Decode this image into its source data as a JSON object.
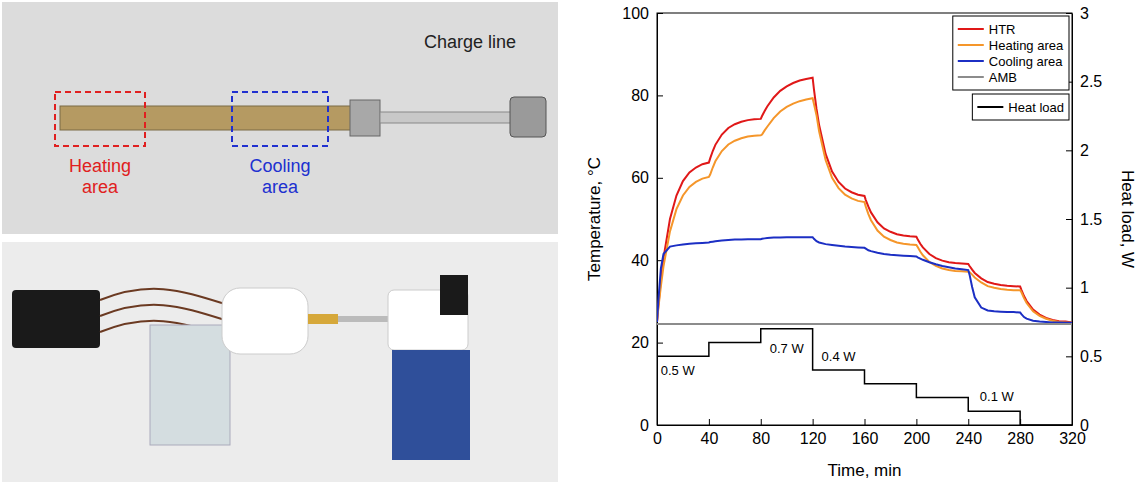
{
  "chart_data": {
    "type": "line",
    "x_label": "Time, min",
    "y_label": "Temperature, °C",
    "y2_label": "Heat load, W",
    "xlim": [
      0,
      320
    ],
    "xticks": [
      0,
      40,
      80,
      120,
      160,
      200,
      240,
      280,
      320
    ],
    "ylim": [
      0,
      100
    ],
    "yticks": [
      0,
      20,
      40,
      60,
      80,
      100
    ],
    "y2lim": [
      0,
      3
    ],
    "y2ticks": [
      0,
      0.5,
      1,
      1.5,
      2,
      2.5,
      3
    ],
    "legend": "upper right",
    "x": [
      0,
      1,
      3,
      5,
      10,
      15,
      20,
      25,
      30,
      35,
      40,
      41,
      43,
      45,
      50,
      55,
      60,
      65,
      70,
      75,
      80,
      81,
      83,
      85,
      90,
      95,
      100,
      105,
      110,
      115,
      120,
      121,
      123,
      125,
      130,
      135,
      140,
      145,
      150,
      155,
      160,
      161,
      163,
      165,
      170,
      175,
      180,
      185,
      190,
      195,
      200,
      201,
      203,
      205,
      210,
      215,
      220,
      225,
      230,
      235,
      240,
      241,
      243,
      245,
      250,
      255,
      260,
      265,
      270,
      275,
      280,
      281,
      283,
      285,
      290,
      295,
      300,
      305,
      310,
      315,
      320
    ],
    "series": [
      {
        "name": "HTR",
        "color": "#e01818",
        "values": [
          25,
          28.8,
          35.2,
          40.5,
          50.0,
          55.7,
          59.2,
          61.3,
          62.5,
          63.3,
          63.7,
          64.7,
          66.5,
          68.0,
          70.5,
          72.1,
          73.0,
          73.6,
          74.0,
          74.2,
          74.3,
          75.0,
          76.2,
          77.3,
          79.5,
          81.1,
          82.2,
          83.0,
          83.6,
          84.0,
          84.3,
          81.5,
          76.7,
          72.8,
          65.8,
          61.5,
          59.0,
          57.4,
          56.5,
          55.9,
          55.6,
          54.6,
          53.0,
          51.6,
          49.2,
          47.7,
          46.9,
          46.3,
          46.0,
          45.8,
          45.7,
          45.1,
          44.0,
          43.1,
          41.5,
          40.5,
          39.9,
          39.5,
          39.3,
          39.2,
          39.1,
          38.6,
          37.7,
          36.9,
          35.6,
          34.7,
          34.3,
          34.0,
          33.8,
          33.7,
          33.6,
          32.8,
          31.3,
          30.1,
          28.0,
          26.8,
          26.0,
          25.5,
          25.2,
          25.1,
          24.9
        ]
      },
      {
        "name": "Heating area",
        "color": "#f5962a",
        "values": [
          25,
          28.3,
          33.7,
          38.5,
          47.0,
          52.4,
          55.7,
          57.8,
          59.0,
          59.8,
          60.2,
          60.8,
          62.5,
          64.0,
          66.5,
          68.1,
          69.0,
          69.6,
          70.0,
          70.2,
          70.3,
          70.5,
          71.5,
          72.4,
          74.5,
          76.1,
          77.2,
          78.0,
          78.6,
          79.0,
          79.3,
          78.0,
          75.2,
          71.3,
          64.3,
          60.0,
          57.5,
          55.9,
          55.0,
          54.4,
          54.1,
          53.0,
          51.2,
          49.7,
          47.2,
          45.7,
          44.9,
          44.3,
          44.0,
          43.8,
          43.7,
          43.2,
          42.1,
          41.2,
          39.6,
          38.6,
          38.0,
          37.6,
          37.4,
          37.3,
          37.2,
          37.1,
          36.5,
          35.8,
          34.6,
          33.7,
          33.3,
          33.0,
          32.8,
          32.7,
          32.7,
          32.2,
          30.8,
          29.6,
          27.6,
          26.5,
          25.8,
          25.3,
          25.0,
          24.9,
          24.8
        ]
      },
      {
        "name": "Cooling area",
        "color": "#1c2fc4",
        "values": [
          25,
          30,
          38,
          41.5,
          43.3,
          43.6,
          43.8,
          44.0,
          44.1,
          44.2,
          44.3,
          44.4,
          44.5,
          44.6,
          44.8,
          44.9,
          45.0,
          45.0,
          45.1,
          45.1,
          45.1,
          45.2,
          45.3,
          45.4,
          45.5,
          45.5,
          45.6,
          45.6,
          45.6,
          45.6,
          45.6,
          45.2,
          44.6,
          44.3,
          43.9,
          43.7,
          43.5,
          43.3,
          43.2,
          43.1,
          43.0,
          42.8,
          42.4,
          42.2,
          41.8,
          41.5,
          41.3,
          41.2,
          41.1,
          41.0,
          40.9,
          40.7,
          40.4,
          40.1,
          39.5,
          39.0,
          38.6,
          38.3,
          38.0,
          37.8,
          37.6,
          36.5,
          33.5,
          31.0,
          28.5,
          27.8,
          27.6,
          27.5,
          27.4,
          27.4,
          27.3,
          26.9,
          26.2,
          25.8,
          25.3,
          25.1,
          25.0,
          24.9,
          24.9,
          24.8,
          24.8
        ]
      },
      {
        "name": "AMB",
        "color": "#8c8c8c",
        "x": [
          0,
          320
        ],
        "values": [
          24.5,
          24.5
        ]
      },
      {
        "name": "Heat load",
        "color": "#000000",
        "axis": "y2",
        "line_style": "step",
        "x": [
          0,
          40,
          80,
          120,
          160,
          200,
          240,
          280,
          320
        ],
        "values": [
          0.5,
          0.6,
          0.7,
          0.4,
          0.3,
          0.2,
          0.1,
          0,
          0
        ]
      }
    ],
    "annotations": [
      {
        "text": "0.5 W",
        "x": 16,
        "y": 0.4,
        "axis": "y2"
      },
      {
        "text": "0.7 W",
        "x": 100,
        "y": 0.56,
        "axis": "y2"
      },
      {
        "text": "0.4 W",
        "x": 140,
        "y": 0.5,
        "axis": "y2"
      },
      {
        "text": "0.1 W",
        "x": 262,
        "y": 0.21,
        "axis": "y2"
      }
    ]
  },
  "photo_labels": {
    "heating_area": "Heating area",
    "cooling_area": "Cooling area",
    "charge_line": "Charge line"
  }
}
